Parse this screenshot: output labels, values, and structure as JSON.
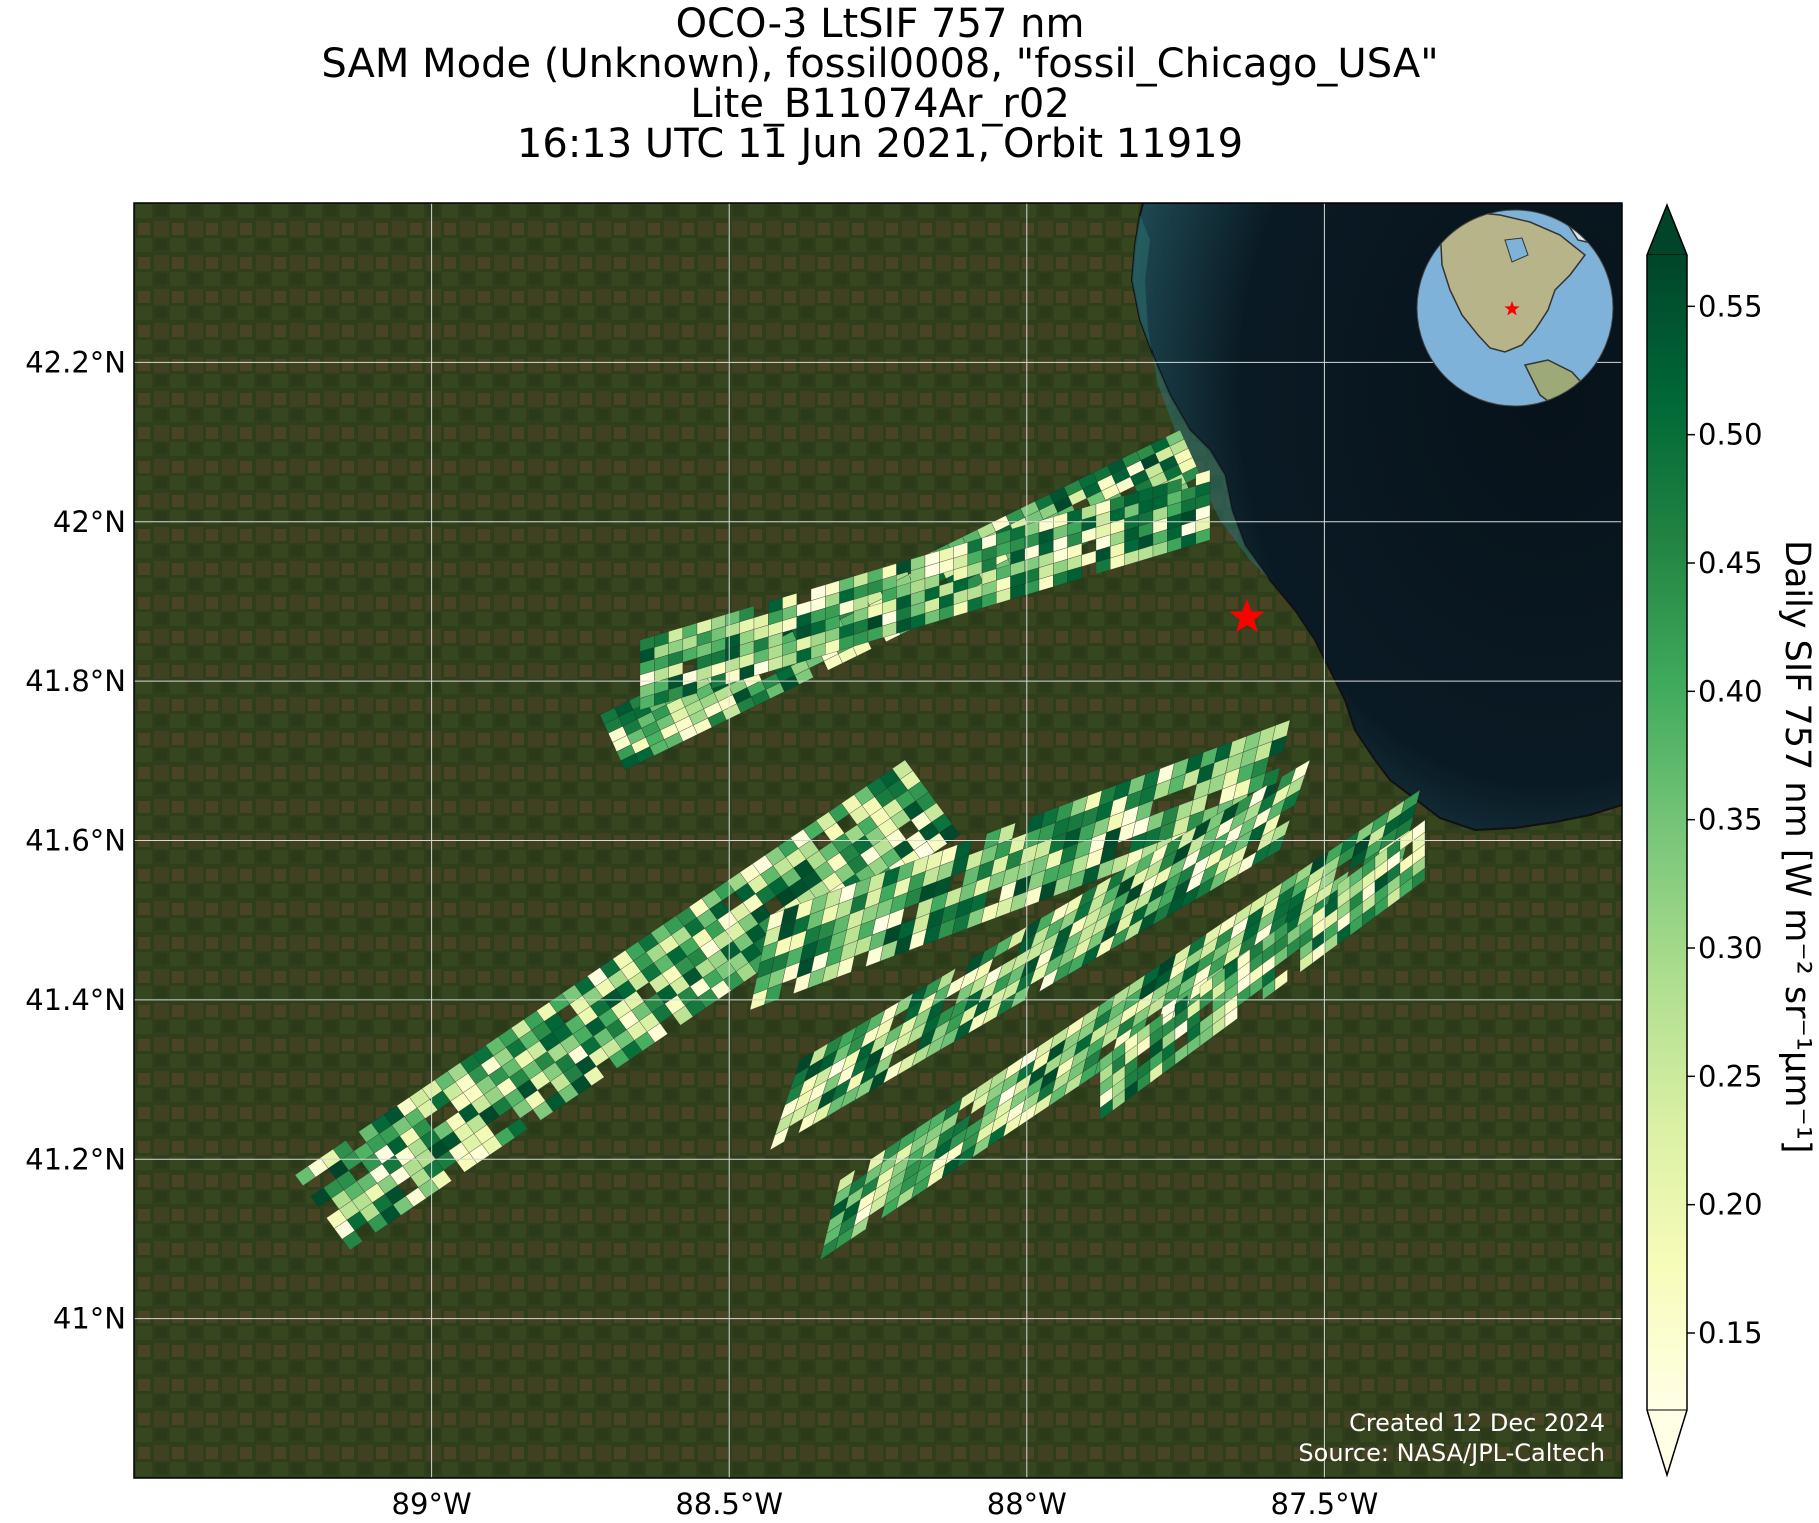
{
  "title": {
    "line1": "OCO-3 LtSIF 757 nm",
    "line2": "SAM Mode (Unknown), fossil0008, \"fossil_Chicago_USA\"",
    "line3": "Lite_B11074Ar_r02",
    "line4": "16:13 UTC 11 Jun 2021, Orbit 11919"
  },
  "map": {
    "lon_range": [
      -89.5,
      -87.0
    ],
    "lat_range": [
      40.8,
      42.4
    ],
    "lat_ticks": [
      {
        "value": 41.0,
        "label": "41°N"
      },
      {
        "value": 41.2,
        "label": "41.2°N"
      },
      {
        "value": 41.4,
        "label": "41.4°N"
      },
      {
        "value": 41.6,
        "label": "41.6°N"
      },
      {
        "value": 41.8,
        "label": "41.8°N"
      },
      {
        "value": 42.0,
        "label": "42°N"
      },
      {
        "value": 42.2,
        "label": "42.2°N"
      }
    ],
    "lon_ticks": [
      {
        "value": -89.0,
        "label": "89°W"
      },
      {
        "value": -88.5,
        "label": "88.5°W"
      },
      {
        "value": -88.0,
        "label": "88°W"
      },
      {
        "value": -87.5,
        "label": "87.5°W"
      }
    ],
    "grid": true,
    "basemap_colors": {
      "land": "#36451f",
      "lake": "#0a1822",
      "lake_nearshore": "#1d4a50"
    },
    "target": {
      "name": "fossil_Chicago_USA",
      "lon": -87.63,
      "lat": 41.88,
      "marker": "red-star-icon",
      "color": "#ff0000"
    },
    "inset_globe": {
      "marker": "red-star-icon",
      "ocean": "#7fb2d8",
      "land": "#b7b48a"
    }
  },
  "colorbar": {
    "label": "Daily SIF 757 nm [W m⁻² sr⁻¹μm⁻¹]",
    "range": [
      0.12,
      0.57
    ],
    "extend": "both",
    "ticks": [
      {
        "value": 0.15,
        "label": "0.15"
      },
      {
        "value": 0.2,
        "label": "0.20"
      },
      {
        "value": 0.25,
        "label": "0.25"
      },
      {
        "value": 0.3,
        "label": "0.30"
      },
      {
        "value": 0.35,
        "label": "0.35"
      },
      {
        "value": 0.4,
        "label": "0.40"
      },
      {
        "value": 0.45,
        "label": "0.45"
      },
      {
        "value": 0.5,
        "label": "0.50"
      },
      {
        "value": 0.55,
        "label": "0.55"
      }
    ],
    "colormap": "YlGn",
    "colormap_stops": [
      "#ffffe5",
      "#f7fcb9",
      "#d9f0a3",
      "#addd8e",
      "#78c679",
      "#41ab5d",
      "#238443",
      "#006837",
      "#004529"
    ]
  },
  "footer": {
    "created": "Created 12 Dec 2024",
    "source": "Source: NASA/JPL-Caltech"
  }
}
